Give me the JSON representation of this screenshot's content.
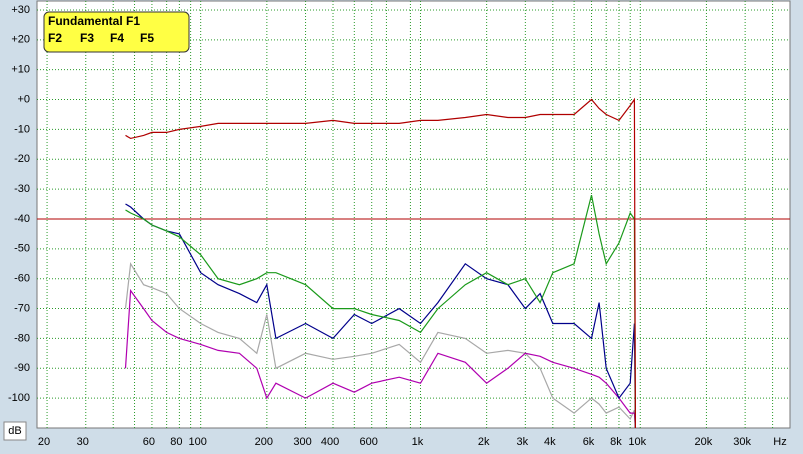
{
  "chart_data": {
    "type": "line",
    "x_label": "Hz",
    "y_label": "dB",
    "x": [
      45.5,
      48,
      55,
      60,
      70,
      80,
      100,
      120,
      150,
      180,
      200,
      220,
      300,
      400,
      500,
      600,
      800,
      1000,
      1200,
      1600,
      2000,
      2500,
      3000,
      3500,
      4000,
      5000,
      6000,
      6500,
      7000,
      8000,
      9000,
      9400,
      9500
    ],
    "series": [
      {
        "name": "Fundamental F1",
        "color": "#b00000",
        "values": [
          -12,
          -13,
          -12,
          -11,
          -11,
          -10,
          -9,
          -8,
          -8,
          -8,
          -8,
          -8,
          -8,
          -7,
          -8,
          -8,
          -8,
          -7,
          -7,
          -6,
          -5,
          -6,
          -6,
          -5,
          -5,
          -5,
          0,
          -3,
          -5,
          -7,
          -2,
          0,
          -110
        ]
      },
      {
        "name": "F2",
        "color": "#1a9a1a",
        "values": [
          -37,
          -38,
          -40,
          -42,
          -44,
          -46,
          -52,
          -60,
          -62,
          -60,
          -58,
          -58,
          -62,
          -70,
          -70,
          -72,
          -74,
          -78,
          -70,
          -62,
          -58,
          -62,
          -60,
          -68,
          -58,
          -55,
          -32,
          -45,
          -55,
          -48,
          -38,
          -40,
          -110
        ]
      },
      {
        "name": "F3",
        "color": "#00008b",
        "values": [
          -35,
          -36,
          -40,
          -42,
          -44,
          -45,
          -58,
          -62,
          -65,
          -68,
          -62,
          -80,
          -75,
          -80,
          -72,
          -75,
          -70,
          -75,
          -68,
          -55,
          -60,
          -62,
          -70,
          -65,
          -75,
          -75,
          -80,
          -68,
          -90,
          -100,
          -95,
          -75,
          -110
        ]
      },
      {
        "name": "F4",
        "color": "#b000b0",
        "values": [
          -90,
          -64,
          -70,
          -74,
          -78,
          -80,
          -82,
          -84,
          -85,
          -90,
          -100,
          -95,
          -100,
          -95,
          -98,
          -95,
          -93,
          -95,
          -85,
          -88,
          -95,
          -90,
          -85,
          -86,
          -88,
          -90,
          -92,
          -93,
          -95,
          -100,
          -105,
          -105,
          -110
        ]
      },
      {
        "name": "F5",
        "color": "#a8a8a8",
        "values": [
          -70,
          -55,
          -62,
          -63,
          -65,
          -70,
          -75,
          -78,
          -80,
          -85,
          -72,
          -90,
          -85,
          -87,
          -86,
          -85,
          -82,
          -88,
          -78,
          -80,
          -85,
          -84,
          -85,
          -90,
          -100,
          -105,
          -100,
          -102,
          -105,
          -103,
          -107,
          -104,
          -110
        ]
      }
    ],
    "reference_line": {
      "value": -40,
      "color": "#b00000"
    },
    "x_scale": "log",
    "xlim": [
      18,
      48000
    ],
    "xticks": [
      20,
      30,
      60,
      80,
      100,
      200,
      300,
      400,
      600,
      {
        "value": 1000,
        "label": "1k"
      },
      {
        "value": 2000,
        "label": "2k"
      },
      {
        "value": 3000,
        "label": "3k"
      },
      {
        "value": 4000,
        "label": "4k"
      },
      {
        "value": 6000,
        "label": "6k"
      },
      {
        "value": 8000,
        "label": "8k"
      },
      {
        "value": 10000,
        "label": "10k"
      },
      {
        "value": 20000,
        "label": "20k"
      },
      {
        "value": 30000,
        "label": "30k"
      }
    ],
    "x_minor_grid": [
      40,
      50,
      70,
      90,
      500,
      700,
      900,
      5000,
      7000,
      9000,
      40000
    ],
    "ylim": [
      -110,
      33
    ],
    "yticks": [
      {
        "value": 30,
        "label": "+30"
      },
      {
        "value": 20,
        "label": "+20"
      },
      {
        "value": 10,
        "label": "+10"
      },
      {
        "value": 0,
        "label": "+0"
      },
      -10,
      -20,
      -30,
      -40,
      -50,
      -60,
      -70,
      -80,
      -90,
      -100
    ],
    "grid": true,
    "legend_position": "upper left"
  }
}
